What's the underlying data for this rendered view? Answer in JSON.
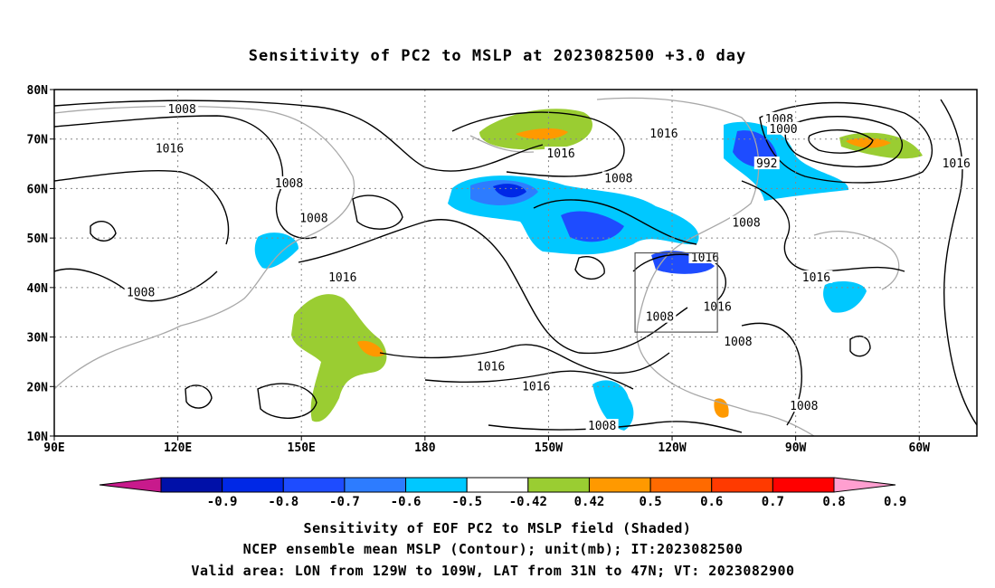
{
  "chart_data": {
    "type": "contour-map",
    "title": "Sensitivity of PC2 to MSLP at 2023082500 +3.0 day",
    "x_ticks": [
      {
        "lon": 90,
        "label": "90E"
      },
      {
        "lon": 120,
        "label": "120E"
      },
      {
        "lon": 150,
        "label": "150E"
      },
      {
        "lon": 180,
        "label": "180"
      },
      {
        "lon": 210,
        "label": "150W"
      },
      {
        "lon": 240,
        "label": "120W"
      },
      {
        "lon": 270,
        "label": "90W"
      },
      {
        "lon": 300,
        "label": "60W"
      }
    ],
    "y_ticks": [
      {
        "lat": 80,
        "label": "80N"
      },
      {
        "lat": 70,
        "label": "70N"
      },
      {
        "lat": 60,
        "label": "60N"
      },
      {
        "lat": 50,
        "label": "50N"
      },
      {
        "lat": 40,
        "label": "40N"
      },
      {
        "lat": 30,
        "label": "30N"
      },
      {
        "lat": 20,
        "label": "20N"
      },
      {
        "lat": 10,
        "label": "10N"
      }
    ],
    "lon_range": [
      90,
      314
    ],
    "lat_range": [
      10,
      80
    ],
    "grid": true,
    "colorbar": {
      "colors": [
        "#c81a8c",
        "#0010a8",
        "#0028e6",
        "#1e4cff",
        "#2d7cff",
        "#00c8ff",
        "#ffffff",
        "#9acd32",
        "#ff9900",
        "#ff6a00",
        "#ff3a00",
        "#ff0000",
        "#ff9fd0"
      ],
      "tick_labels": [
        "-0.9",
        "-0.8",
        "-0.7",
        "-0.6",
        "-0.5",
        "-0.42",
        "0.42",
        "0.5",
        "0.6",
        "0.7",
        "0.8",
        "0.9"
      ]
    },
    "contour_labels": [
      {
        "lon": 121,
        "lat": 76,
        "text": "1008"
      },
      {
        "lon": 118,
        "lat": 68,
        "text": "1016"
      },
      {
        "lon": 111,
        "lat": 39,
        "text": "1008"
      },
      {
        "lon": 147,
        "lat": 61,
        "text": "1008"
      },
      {
        "lon": 153,
        "lat": 54,
        "text": "1008"
      },
      {
        "lon": 160,
        "lat": 42,
        "text": "1016"
      },
      {
        "lon": 196,
        "lat": 24,
        "text": "1016"
      },
      {
        "lon": 207,
        "lat": 20,
        "text": "1016"
      },
      {
        "lon": 213,
        "lat": 67,
        "text": "1016"
      },
      {
        "lon": 227,
        "lat": 62,
        "text": "1008"
      },
      {
        "lon": 238,
        "lat": 71,
        "text": "1016"
      },
      {
        "lon": 266,
        "lat": 74,
        "text": "1008"
      },
      {
        "lon": 267,
        "lat": 72,
        "text": "1000"
      },
      {
        "lon": 263,
        "lat": 65,
        "text": "992"
      },
      {
        "lon": 248,
        "lat": 46,
        "text": "1016"
      },
      {
        "lon": 251,
        "lat": 36,
        "text": "1016"
      },
      {
        "lon": 237,
        "lat": 34,
        "text": "1008"
      },
      {
        "lon": 256,
        "lat": 29,
        "text": "1008"
      },
      {
        "lon": 258,
        "lat": 53,
        "text": "1008"
      },
      {
        "lon": 275,
        "lat": 42,
        "text": "1016"
      },
      {
        "lon": 309,
        "lat": 65,
        "text": "1016"
      },
      {
        "lon": 272,
        "lat": 16,
        "text": "1008"
      },
      {
        "lon": 223,
        "lat": 12,
        "text": "1008"
      }
    ],
    "valid_box": {
      "lon": [
        231,
        251
      ],
      "lat": [
        31,
        47
      ]
    }
  },
  "captions": {
    "line1": "Sensitivity of EOF PC2 to MSLP field (Shaded)",
    "line2": "NCEP ensemble mean MSLP (Contour); unit(mb); IT:2023082500",
    "line3": "Valid area: LON from 129W to 109W, LAT from 31N to 47N; VT: 2023082900"
  }
}
